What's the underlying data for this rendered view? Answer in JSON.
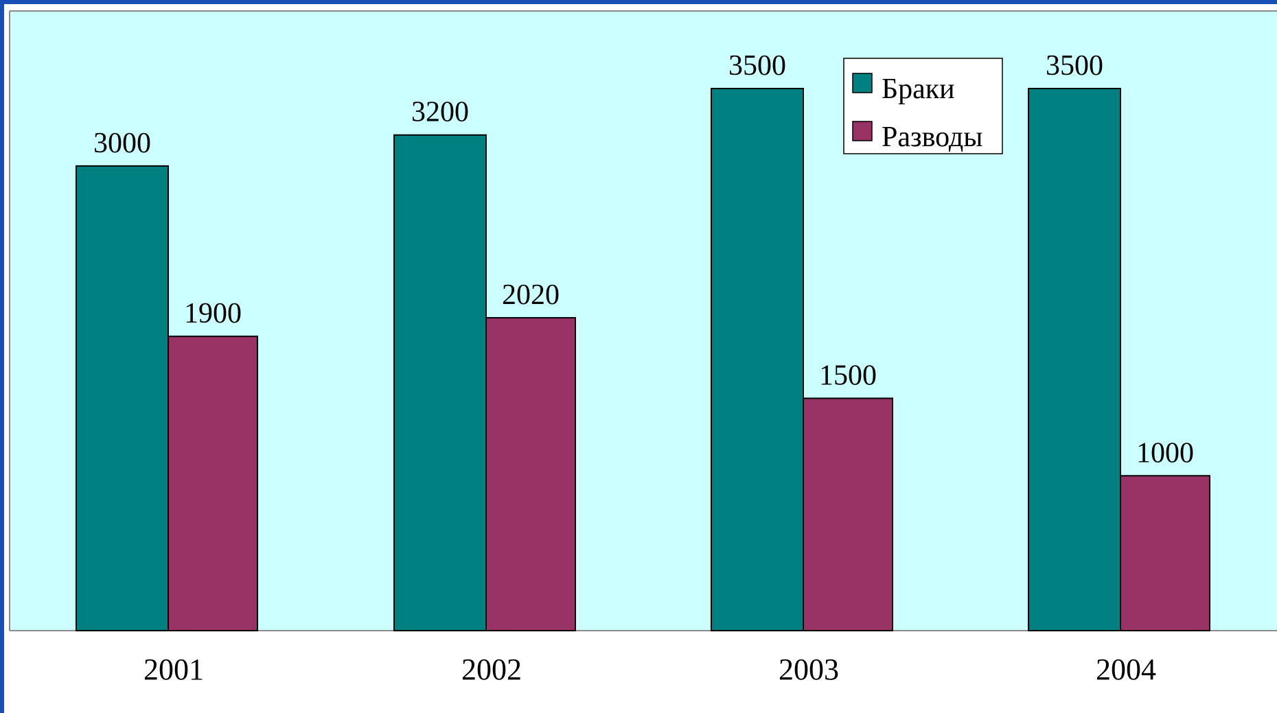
{
  "chart_data": {
    "type": "bar",
    "title": "",
    "xlabel": "",
    "ylabel": "",
    "categories": [
      "2001",
      "2002",
      "2003",
      "2004"
    ],
    "series": [
      {
        "name": "Браки",
        "values": [
          3000,
          3200,
          3500,
          3500
        ],
        "color": "#008080"
      },
      {
        "name": "Разводы",
        "values": [
          1900,
          2020,
          1500,
          1000
        ],
        "color": "#993366"
      }
    ],
    "ylim": [
      0,
      3500
    ],
    "grid": false,
    "legend": "top-right",
    "data_labels": true
  },
  "colors": {
    "plot_background": "#ccffff",
    "frame": "#1a4fb8",
    "page_background": "#ffffff"
  }
}
